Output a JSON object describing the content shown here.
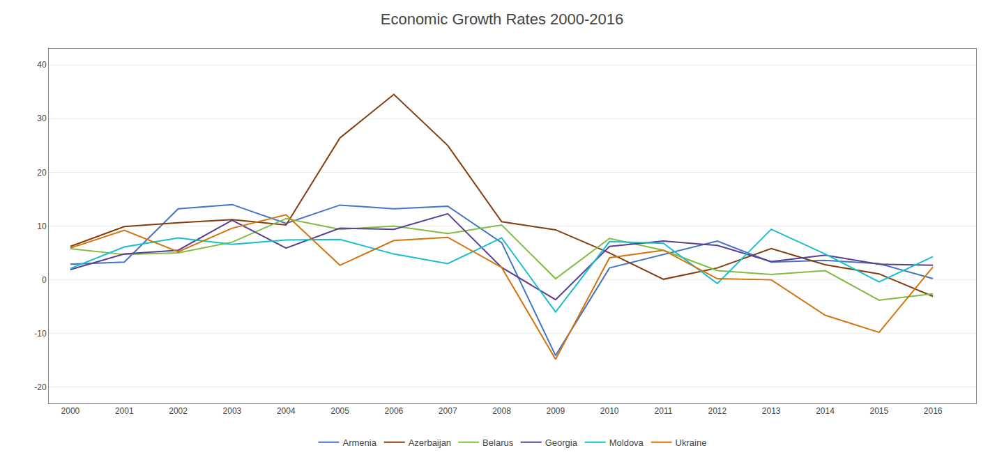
{
  "chart_data": {
    "type": "line",
    "title": "Economic Growth Rates 2000-2016",
    "x": [
      2000,
      2001,
      2002,
      2003,
      2004,
      2005,
      2006,
      2007,
      2008,
      2009,
      2010,
      2011,
      2012,
      2013,
      2014,
      2015,
      2016
    ],
    "series": [
      {
        "name": "Armenia",
        "color": "#4472c4",
        "values": [
          2.9,
          3.3,
          13.2,
          14.0,
          10.5,
          13.9,
          13.2,
          13.7,
          6.9,
          -14.1,
          2.2,
          4.7,
          7.2,
          3.3,
          3.6,
          3.0,
          0.2
        ]
      },
      {
        "name": "Azerbaijan",
        "color": "#843c0c",
        "values": [
          6.2,
          9.9,
          10.6,
          11.2,
          10.2,
          26.4,
          34.5,
          25.0,
          10.8,
          9.3,
          5.0,
          0.1,
          2.2,
          5.8,
          2.8,
          1.1,
          -3.1
        ]
      },
      {
        "name": "Belarus",
        "color": "#7fbc41",
        "values": [
          5.8,
          4.7,
          5.0,
          7.0,
          11.4,
          9.4,
          10.0,
          8.6,
          10.2,
          0.2,
          7.7,
          5.5,
          1.7,
          1.0,
          1.7,
          -3.8,
          -2.6
        ]
      },
      {
        "name": "Georgia",
        "color": "#5b3e91",
        "values": [
          1.9,
          4.8,
          5.5,
          11.1,
          5.9,
          9.6,
          9.4,
          12.3,
          2.3,
          -3.7,
          6.2,
          7.2,
          6.4,
          3.4,
          4.6,
          2.9,
          2.7
        ]
      },
      {
        "name": "Moldova",
        "color": "#17becf",
        "values": [
          2.1,
          6.1,
          7.8,
          6.6,
          7.4,
          7.5,
          4.8,
          3.0,
          7.8,
          -6.0,
          7.1,
          6.8,
          -0.7,
          9.4,
          4.8,
          -0.4,
          4.3
        ]
      },
      {
        "name": "Ukraine",
        "color": "#d4720b",
        "values": [
          5.9,
          9.2,
          5.2,
          9.6,
          12.1,
          2.7,
          7.3,
          7.9,
          2.3,
          -14.8,
          4.1,
          5.5,
          0.2,
          0.0,
          -6.6,
          -9.8,
          2.4
        ]
      }
    ],
    "xlim": [
      1999.6,
      2016.8
    ],
    "xticks": [
      2000,
      2001,
      2002,
      2003,
      2004,
      2005,
      2006,
      2007,
      2008,
      2009,
      2010,
      2011,
      2012,
      2013,
      2014,
      2015,
      2016
    ],
    "ylim": [
      -23,
      43
    ],
    "yticks": [
      -20,
      -10,
      0,
      10,
      20,
      30,
      40
    ],
    "grid": "y",
    "legend": "bottom"
  }
}
